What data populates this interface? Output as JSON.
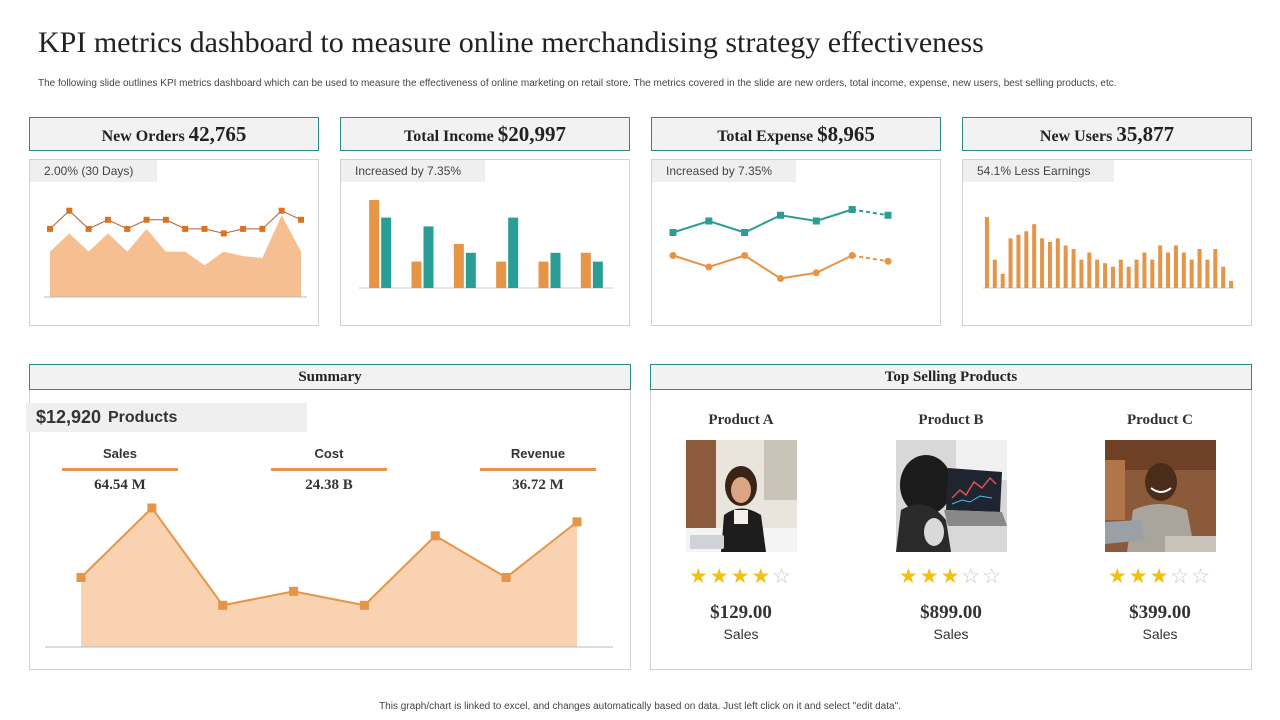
{
  "title": "KPI metrics dashboard to measure online merchandising strategy effectiveness",
  "subtitle": "The following slide outlines KPI metrics dashboard which can be used to measure the effectiveness of online marketing on retail store. The metrics covered in the slide are new orders, total income, expense, new users, best selling products, etc.",
  "kpis": [
    {
      "label": "New Orders",
      "value": "42,765",
      "tag": "2.00% (30 Days)"
    },
    {
      "label": "Total Income",
      "value": "$20,997",
      "tag": "Increased by 7.35%"
    },
    {
      "label": "Total Expense",
      "value": "$8,965",
      "tag": "Increased by 7.35%"
    },
    {
      "label": "New Users",
      "value": "35,877",
      "tag": "54.1% Less Earnings"
    }
  ],
  "summary": {
    "header": "Summary",
    "amount": "$12,920",
    "amount_label": "Products",
    "columns": [
      {
        "label": "Sales",
        "value": "64.54 M"
      },
      {
        "label": "Cost",
        "value": "24.38 B"
      },
      {
        "label": "Revenue",
        "value": "36.72 M"
      }
    ]
  },
  "top_products": {
    "header": "Top Selling Products",
    "products": [
      {
        "name": "Product A",
        "rating": 4,
        "max_rating": 5,
        "price": "$129.00",
        "sales_label": "Sales"
      },
      {
        "name": "Product B",
        "rating": 3,
        "max_rating": 5,
        "price": "$899.00",
        "sales_label": "Sales"
      },
      {
        "name": "Product C",
        "rating": 3,
        "max_rating": 5,
        "price": "$399.00",
        "sales_label": "Sales"
      }
    ]
  },
  "footer": "This graph/chart is linked to excel, and changes automatically based on data. Just left click on it and select \"edit data\".",
  "colors": {
    "orange": "#e59545",
    "orange_fill": "#f6bf92",
    "teal": "#2a9d94",
    "teal_border": "#2a8a86",
    "star": "#f2c014"
  },
  "chart_data": [
    {
      "type": "area",
      "id": "new-orders",
      "x": [
        1,
        2,
        3,
        4,
        5,
        6,
        7,
        8,
        9,
        10,
        11,
        12,
        13,
        14
      ],
      "series": [
        {
          "kind": "line",
          "values": [
            7.5,
            9.5,
            7.5,
            8.5,
            7.5,
            8.5,
            8.5,
            7.5,
            7.5,
            7,
            7.5,
            7.5,
            9.5,
            8.5
          ]
        },
        {
          "kind": "area",
          "values": [
            5,
            7,
            5,
            7,
            5,
            7.5,
            5,
            5,
            3.5,
            5,
            4.5,
            4.3,
            9,
            5
          ]
        }
      ],
      "ylim": [
        0,
        12
      ]
    },
    {
      "type": "bar",
      "id": "total-income",
      "categories": [
        "1",
        "2",
        "3",
        "4",
        "5",
        "6"
      ],
      "series": [
        {
          "values": [
            10,
            3,
            5,
            3,
            3,
            4
          ]
        },
        {
          "values": [
            8,
            7,
            4,
            8,
            4,
            3
          ]
        }
      ],
      "ylim": [
        0,
        10
      ]
    },
    {
      "type": "line",
      "id": "total-expense",
      "x": [
        1,
        2,
        3,
        4,
        5,
        6,
        7
      ],
      "series": [
        {
          "values": [
            3,
            2,
            3,
            1,
            1.5,
            3,
            2.5
          ],
          "forecast_from_index": 5
        },
        {
          "values": [
            5,
            6,
            5,
            6.5,
            6,
            7,
            6.5
          ],
          "forecast_from_index": 5
        }
      ],
      "ylim": [
        0,
        8
      ]
    },
    {
      "type": "bar",
      "id": "new-users",
      "categories": [
        "1",
        "2",
        "3",
        "4",
        "5",
        "6",
        "7",
        "8",
        "9",
        "10",
        "11",
        "12",
        "13",
        "14",
        "15",
        "16",
        "17",
        "18",
        "19",
        "20",
        "21",
        "22",
        "23",
        "24",
        "25",
        "26",
        "27",
        "28",
        "29",
        "30",
        "31",
        "32"
      ],
      "values": [
        10,
        4,
        2,
        7,
        7.5,
        8,
        9,
        7,
        6.5,
        7,
        6,
        5.5,
        4,
        5,
        4,
        3.5,
        3,
        4,
        3,
        4,
        5,
        4,
        6,
        5,
        6,
        5,
        4,
        5.5,
        4,
        5.5,
        3,
        1
      ],
      "ylim": [
        0,
        11
      ]
    },
    {
      "type": "area",
      "id": "summary-trend",
      "x": [
        1,
        2,
        3,
        4,
        5,
        6,
        7,
        8
      ],
      "values": [
        5,
        10,
        3,
        4,
        3,
        8,
        5,
        9
      ],
      "ylim": [
        0,
        10.5
      ]
    }
  ]
}
